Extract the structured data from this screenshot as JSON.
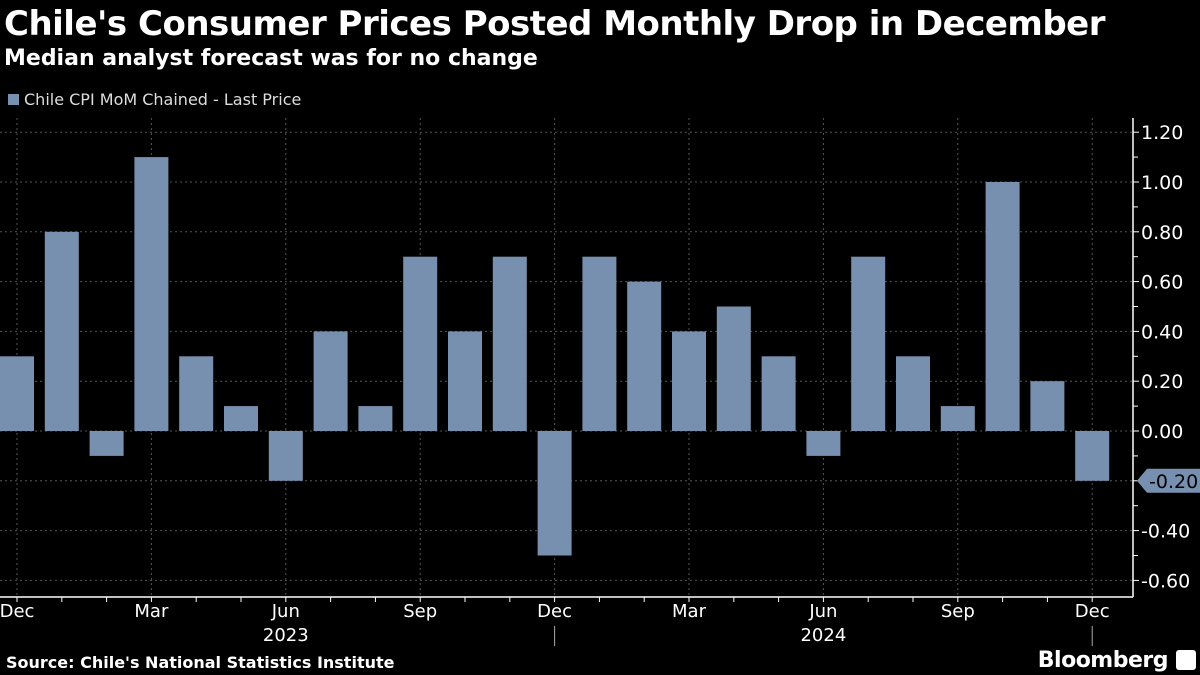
{
  "title": "Chile's Consumer Prices Posted Monthly Drop in December",
  "subtitle": "Median analyst forecast was for no change",
  "source": "Source: Chile's National Statistics Institute",
  "brand": "Bloomberg",
  "chart_data": {
    "type": "bar",
    "legend": "Chile CPI MoM Chained - Last Price",
    "bar_color": "#7890b0",
    "categories": [
      "Dec 2022",
      "Jan 2023",
      "Feb 2023",
      "Mar 2023",
      "Apr 2023",
      "May 2023",
      "Jun 2023",
      "Jul 2023",
      "Aug 2023",
      "Sep 2023",
      "Oct 2023",
      "Nov 2023",
      "Dec 2023",
      "Jan 2024",
      "Feb 2024",
      "Mar 2024",
      "Apr 2024",
      "May 2024",
      "Jun 2024",
      "Jul 2024",
      "Aug 2024",
      "Sep 2024",
      "Oct 2024",
      "Nov 2024",
      "Dec 2024"
    ],
    "values": [
      0.3,
      0.8,
      -0.1,
      1.1,
      0.3,
      0.1,
      -0.2,
      0.4,
      0.1,
      0.7,
      0.4,
      0.7,
      -0.5,
      0.7,
      0.6,
      0.4,
      0.5,
      0.3,
      -0.1,
      0.7,
      0.3,
      0.1,
      1.0,
      0.2,
      -0.2
    ],
    "ylim": [
      -0.6,
      1.2
    ],
    "yticks": [
      "1.20",
      "1.00",
      "0.80",
      "0.60",
      "0.40",
      "0.20",
      "0.00",
      "-0.20",
      "-0.40",
      "-0.60"
    ],
    "xtick_labels": [
      {
        "i": 0,
        "label": "Dec"
      },
      {
        "i": 3,
        "label": "Mar"
      },
      {
        "i": 6,
        "label": "Jun"
      },
      {
        "i": 9,
        "label": "Sep"
      },
      {
        "i": 12,
        "label": "Dec"
      },
      {
        "i": 15,
        "label": "Mar"
      },
      {
        "i": 18,
        "label": "Jun"
      },
      {
        "i": 21,
        "label": "Sep"
      },
      {
        "i": 24,
        "label": "Dec"
      }
    ],
    "year_labels": [
      {
        "i": 6,
        "label": "2023"
      },
      {
        "i": 18,
        "label": "2024"
      }
    ],
    "last_value_label": "-0.20",
    "grid": true,
    "y_axis_side": "right"
  }
}
